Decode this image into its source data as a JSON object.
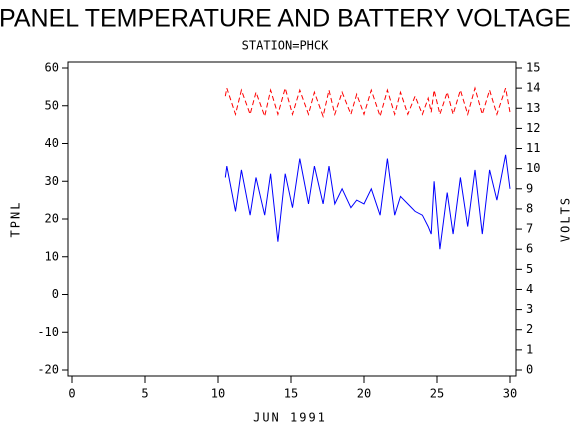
{
  "chart_data": {
    "type": "line",
    "title": "PANEL TEMPERATURE AND BATTERY VOLTAGE",
    "subtitle": "STATION=PHCK",
    "x_label": "JUN 1991",
    "y_label": "TPNL",
    "y2_label": "VOLTS",
    "xlim": [
      0,
      30
    ],
    "xticks": [
      0,
      5,
      10,
      15,
      20,
      25,
      30
    ],
    "ylim": [
      -20,
      60
    ],
    "yticks": [
      -20,
      -10,
      0,
      10,
      20,
      30,
      40,
      50,
      60
    ],
    "y2lim": [
      0,
      15
    ],
    "y2ticks": [
      0,
      1,
      2,
      3,
      4,
      5,
      6,
      7,
      8,
      9,
      10,
      11,
      12,
      13,
      14,
      15
    ],
    "x": [
      10.5,
      10.6,
      11.2,
      11.6,
      12.2,
      12.6,
      13.2,
      13.6,
      14.1,
      14.6,
      15.1,
      15.6,
      16.2,
      16.6,
      17.2,
      17.6,
      18,
      18.5,
      19.1,
      19.5,
      20,
      20.5,
      21.1,
      21.6,
      22.1,
      22.5,
      23,
      23.5,
      24,
      24.4,
      24.6,
      24.8,
      25.2,
      25.7,
      26.1,
      26.6,
      27.1,
      27.6,
      28.1,
      28.6,
      29.1,
      29.7,
      30
    ],
    "series": [
      {
        "name": "TPNL",
        "color": "#0000ff",
        "dash": false,
        "values": [
          31,
          34,
          22,
          33,
          21,
          31,
          21,
          32,
          14,
          32,
          23,
          36,
          24,
          34,
          24,
          34,
          24,
          28,
          23,
          25,
          24,
          28,
          21,
          36,
          21,
          26,
          24,
          22,
          21,
          18,
          16,
          30,
          12,
          27,
          16,
          31,
          18,
          33,
          16,
          33,
          25,
          37,
          28
        ]
      },
      {
        "name": "VOLTS",
        "color": "#ff0000",
        "dash": true,
        "axis": "y2",
        "values": [
          13.6,
          14,
          12.7,
          13.9,
          12.7,
          13.8,
          12.6,
          13.9,
          12.7,
          14,
          12.7,
          13.9,
          12.7,
          13.8,
          12.6,
          13.9,
          12.7,
          13.8,
          12.7,
          13.7,
          12.7,
          13.9,
          12.6,
          13.9,
          12.7,
          13.8,
          12.7,
          13.6,
          12.7,
          13.5,
          12.8,
          13.9,
          12.7,
          13.8,
          12.7,
          13.9,
          12.7,
          14,
          12.7,
          13.9,
          12.7,
          14,
          12.8
        ]
      }
    ]
  }
}
